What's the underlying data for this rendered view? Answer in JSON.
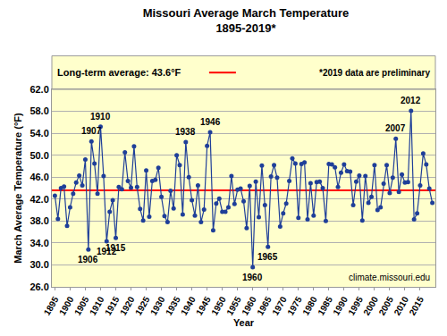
{
  "chart_data": {
    "type": "line",
    "title": "Missouri Average March Temperature",
    "subtitle": "1895-2019*",
    "x_label": "Year",
    "y_label": "March Average Temperature (°F)",
    "x": [
      1895,
      1896,
      1897,
      1898,
      1899,
      1900,
      1901,
      1902,
      1903,
      1904,
      1905,
      1906,
      1907,
      1908,
      1909,
      1910,
      1911,
      1912,
      1913,
      1914,
      1915,
      1916,
      1917,
      1918,
      1919,
      1920,
      1921,
      1922,
      1923,
      1924,
      1925,
      1926,
      1927,
      1928,
      1929,
      1930,
      1931,
      1932,
      1933,
      1934,
      1935,
      1936,
      1937,
      1938,
      1939,
      1940,
      1941,
      1942,
      1943,
      1944,
      1945,
      1946,
      1947,
      1948,
      1949,
      1950,
      1951,
      1952,
      1953,
      1954,
      1955,
      1956,
      1957,
      1958,
      1959,
      1960,
      1961,
      1962,
      1963,
      1964,
      1965,
      1966,
      1967,
      1968,
      1969,
      1970,
      1971,
      1972,
      1973,
      1974,
      1975,
      1976,
      1977,
      1978,
      1979,
      1980,
      1981,
      1982,
      1983,
      1984,
      1985,
      1986,
      1987,
      1988,
      1989,
      1990,
      1991,
      1992,
      1993,
      1994,
      1995,
      1996,
      1997,
      1998,
      1999,
      2000,
      2001,
      2002,
      2003,
      2004,
      2005,
      2006,
      2007,
      2008,
      2009,
      2010,
      2011,
      2012,
      2013,
      2014,
      2015,
      2016,
      2017,
      2018,
      2019
    ],
    "values": [
      42.6,
      38.4,
      44.0,
      44.3,
      37.1,
      40.5,
      43.0,
      45.0,
      46.3,
      44.5,
      49.2,
      32.8,
      52.5,
      48.5,
      43.0,
      55.2,
      46.2,
      34.3,
      39.7,
      41.8,
      34.9,
      44.2,
      43.8,
      50.5,
      45.3,
      44.1,
      51.6,
      44.2,
      40.2,
      38.1,
      47.2,
      38.8,
      45.3,
      45.5,
      47.7,
      42.4,
      38.9,
      37.8,
      43.5,
      40.3,
      50.0,
      48.2,
      39.2,
      52.4,
      46.0,
      41.8,
      39.0,
      44.5,
      37.8,
      40.1,
      51.7,
      54.2,
      36.3,
      41.2,
      42.1,
      39.7,
      39.7,
      40.5,
      46.2,
      41.1,
      43.7,
      43.9,
      41.6,
      36.7,
      44.4,
      29.6,
      45.2,
      38.7,
      48.1,
      40.9,
      33.3,
      46.1,
      48.2,
      45.9,
      37.0,
      39.4,
      41.2,
      45.3,
      49.4,
      48.5,
      38.6,
      48.4,
      48.7,
      38.3,
      44.9,
      39.0,
      45.1,
      45.2,
      44.0,
      38.0,
      48.4,
      48.3,
      47.8,
      44.2,
      46.8,
      48.3,
      47.1,
      47.0,
      40.9,
      45.2,
      46.3,
      38.1,
      46.2,
      41.3,
      42.4,
      48.2,
      40.0,
      40.5,
      44.8,
      48.2,
      43.1,
      45.9,
      53.0,
      43.3,
      46.5,
      45.0,
      45.1,
      58.1,
      38.3,
      39.4,
      44.5,
      50.3,
      48.3,
      43.9,
      41.3
    ],
    "color": "#1f3f99",
    "marker": "circle",
    "line_style": "solid",
    "xlim": [
      1894,
      2020
    ],
    "xticks": [
      1895,
      1900,
      1905,
      1910,
      1915,
      1920,
      1925,
      1930,
      1935,
      1940,
      1945,
      1950,
      1955,
      1960,
      1965,
      1970,
      1975,
      1980,
      1985,
      1990,
      1995,
      2000,
      2005,
      2010,
      2015
    ],
    "ylim": [
      26,
      62
    ],
    "yticks": [
      {
        "value": 26,
        "label": "26.0"
      },
      {
        "value": 30,
        "label": "30.0"
      },
      {
        "value": 34,
        "label": "34.0"
      },
      {
        "value": 38,
        "label": "38.0"
      },
      {
        "value": 42,
        "label": "42.0"
      },
      {
        "value": 46,
        "label": "46.0"
      },
      {
        "value": 50,
        "label": "50.0"
      },
      {
        "value": 54,
        "label": "54.0"
      },
      {
        "value": 58,
        "label": "58.0"
      },
      {
        "value": 62,
        "label": "62.0"
      }
    ],
    "grid": true,
    "reference_lines": [
      {
        "value": 43.6,
        "label": "Long-term average: 43.6°F",
        "color": "#ff0000"
      }
    ],
    "annotations": [
      {
        "x": 1906,
        "y": 32.8,
        "text": "1906"
      },
      {
        "x": 1907,
        "y": 52.5,
        "text": "1907"
      },
      {
        "x": 1910,
        "y": 55.2,
        "text": "1910"
      },
      {
        "x": 1912,
        "y": 34.3,
        "text": "1912"
      },
      {
        "x": 1915,
        "y": 34.9,
        "text": "1915"
      },
      {
        "x": 1938,
        "y": 52.4,
        "text": "1938"
      },
      {
        "x": 1946,
        "y": 54.2,
        "text": "1946"
      },
      {
        "x": 1960,
        "y": 29.6,
        "text": "1960"
      },
      {
        "x": 1965,
        "y": 33.3,
        "text": "1965"
      },
      {
        "x": 2007,
        "y": 53.0,
        "text": "2007"
      },
      {
        "x": 2012,
        "y": 58.1,
        "text": "2012"
      }
    ],
    "footnote": "*2019 data are preliminary",
    "source": "climate.missouri.edu"
  }
}
